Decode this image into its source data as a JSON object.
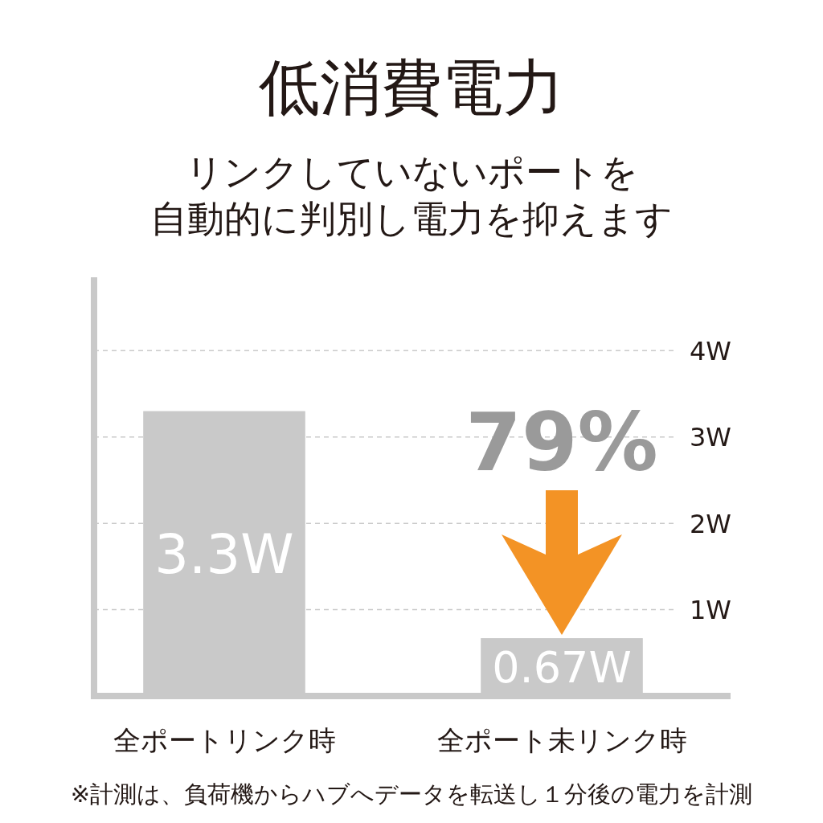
{
  "chart_data": {
    "type": "bar",
    "title": "低消費電力",
    "subtitle": "リンクしていないポートを",
    "categories": [
      "全ポートリンク時",
      "全ポート未リンク時"
    ],
    "values": [
      3.3,
      0.67
    ],
    "color": "#c9c9c9",
    "value_labels": [
      "3.3W",
      "0.67W"
    ],
    "ylim": [
      0,
      4.85
    ],
    "yticks": [
      {
        "value": 1,
        "label": "1W"
      },
      {
        "value": 2,
        "label": "2W"
      },
      {
        "value": 3,
        "label": "3W"
      },
      {
        "value": 4,
        "label": "4W"
      }
    ],
    "grid": "y",
    "annotations": [
      "自動的に判別し電力を抑えます",
      {
        "text": "79%",
        "x": "全ポート未リンク時",
        "y": 0.67
      },
      "※計測は、負荷機からハブへデータを転送し１分後の電力を計測"
    ]
  }
}
